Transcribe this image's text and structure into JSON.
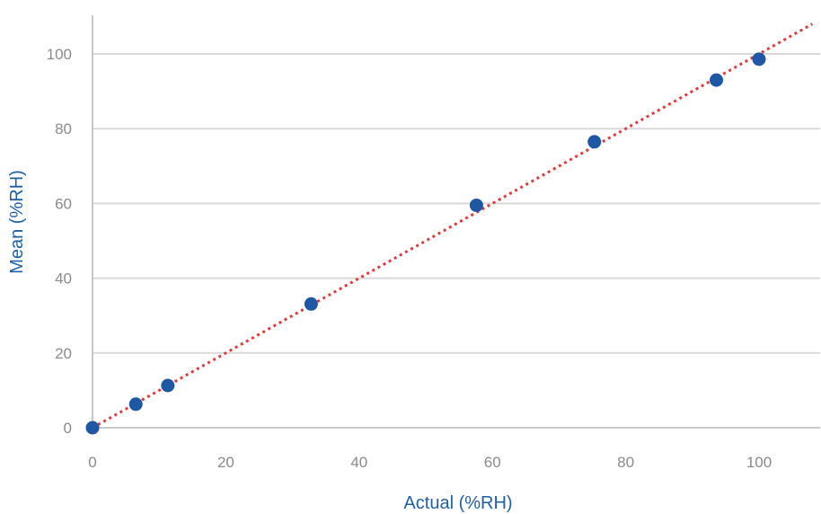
{
  "chart_data": {
    "type": "scatter",
    "title": "",
    "xlabel": "Actual (%RH)",
    "ylabel": "Mean (%RH)",
    "xlim": [
      0,
      108
    ],
    "ylim": [
      0,
      110
    ],
    "x_ticks": [
      0,
      20,
      40,
      60,
      80,
      100
    ],
    "y_ticks": [
      0,
      20,
      40,
      60,
      80,
      100
    ],
    "grid": "horizontal",
    "series": [
      {
        "x": [
          0,
          6.5,
          11.3,
          32.8,
          57.6,
          75.3,
          93.6,
          100
        ],
        "y": [
          0,
          6.3,
          11.3,
          33.1,
          59.5,
          76.5,
          93.0,
          98.6
        ],
        "color": "#1e57a3"
      }
    ],
    "trendline": {
      "style": "dotted",
      "color": "#e03a3a",
      "x": [
        0,
        108
      ],
      "y": [
        0,
        108
      ]
    }
  }
}
